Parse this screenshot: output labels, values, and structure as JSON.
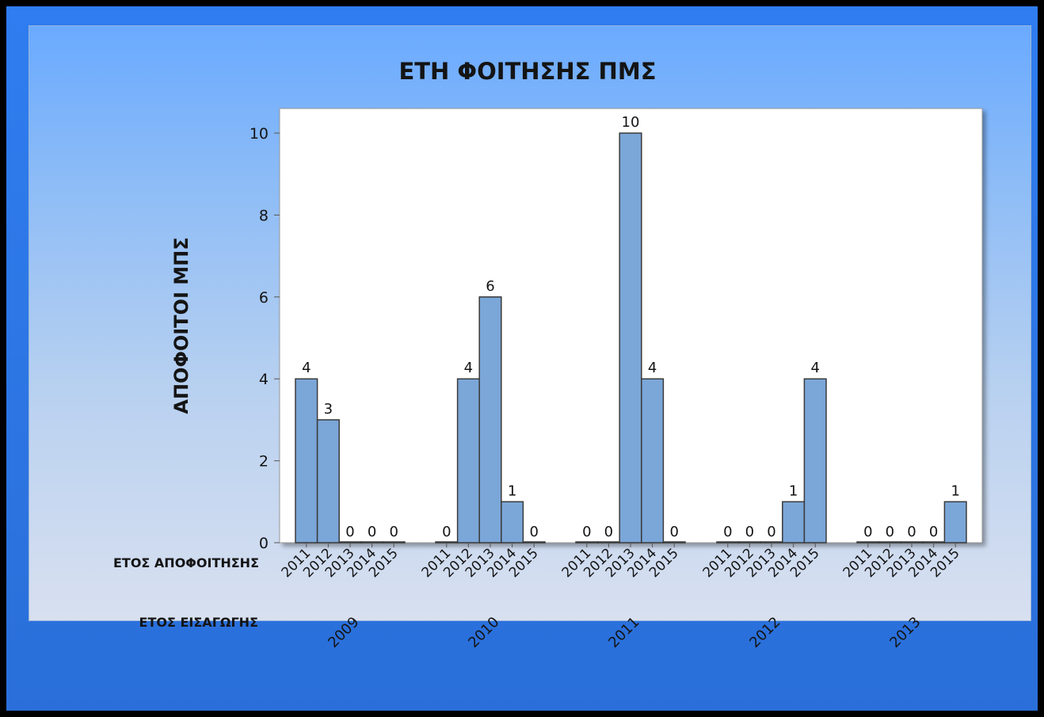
{
  "chart_data": {
    "type": "bar",
    "title": "ΕΤΗ ΦΟΙΤΗΣΗΣ ΠΜΣ",
    "ylabel": "ΑΠΟΦΟΙΤΟΙ ΜΠΣ",
    "xlabel_inner": "ΕΤΟΣ ΑΠΟΦΟΙΤΗΣΗΣ",
    "xlabel_outer": "ΕΤΟΣ ΕΙΣΑΓΩΓΗΣ",
    "ylim": [
      0,
      10.5
    ],
    "yticks": [
      0,
      2,
      4,
      6,
      8,
      10
    ],
    "grid": false,
    "bar_color": "#7ba6d8",
    "bar_edge_color": "#3a3a3a",
    "groups": [
      {
        "label": "2009",
        "categories": [
          "2011",
          "2012",
          "2013",
          "2014",
          "2015"
        ],
        "values": [
          4,
          3,
          0,
          0,
          0
        ]
      },
      {
        "label": "2010",
        "categories": [
          "2011",
          "2012",
          "2013",
          "2014",
          "2015"
        ],
        "values": [
          0,
          4,
          6,
          1,
          0
        ]
      },
      {
        "label": "2011",
        "categories": [
          "2011",
          "2012",
          "2013",
          "2014",
          "2015"
        ],
        "values": [
          0,
          0,
          10,
          4,
          0
        ]
      },
      {
        "label": "2012",
        "categories": [
          "2011",
          "2012",
          "2013",
          "2014",
          "2015"
        ],
        "values": [
          0,
          0,
          0,
          1,
          4
        ]
      },
      {
        "label": "2013",
        "categories": [
          "2011",
          "2012",
          "2013",
          "2014",
          "2015"
        ],
        "values": [
          0,
          0,
          0,
          0,
          1
        ]
      }
    ]
  }
}
